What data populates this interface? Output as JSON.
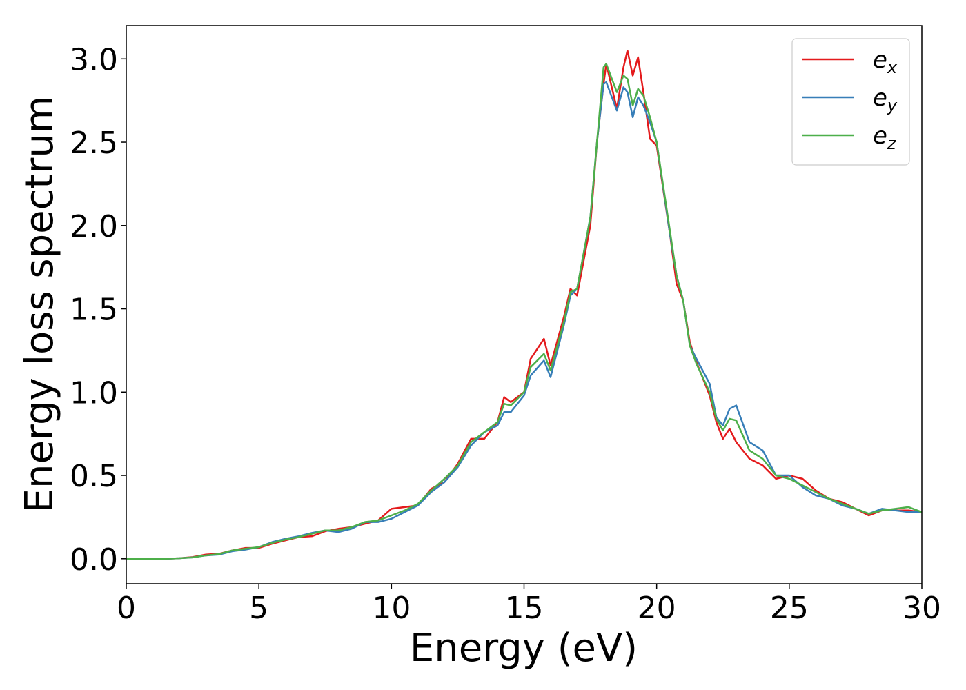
{
  "chart_data": {
    "type": "line",
    "xlabel": "Energy (eV)",
    "ylabel": "Energy loss spectrum",
    "x": [
      0,
      0.5,
      1,
      1.5,
      2,
      2.5,
      3,
      3.5,
      4,
      4.5,
      5,
      5.5,
      6,
      6.5,
      7,
      7.5,
      8,
      8.5,
      9,
      9.5,
      10,
      10.5,
      11,
      11.5,
      12,
      12.5,
      13,
      13.5,
      14,
      14.25,
      14.5,
      15,
      15.25,
      15.75,
      16,
      16.5,
      16.75,
      17,
      17.5,
      17.75,
      18,
      18.1,
      18.5,
      18.75,
      18.9,
      19.1,
      19.3,
      19.5,
      19.75,
      20,
      20.5,
      20.75,
      21,
      21.25,
      21.5,
      22,
      22.25,
      22.5,
      22.75,
      23,
      23.5,
      24,
      24.5,
      25,
      25.5,
      26,
      26.5,
      27,
      27.5,
      28,
      28.5,
      29,
      29.5,
      30
    ],
    "series": [
      {
        "name": "ex",
        "color": "#e41a1c",
        "values": [
          0,
          0,
          0,
          0,
          0.003,
          0.01,
          0.025,
          0.03,
          0.05,
          0.065,
          0.065,
          0.09,
          0.11,
          0.13,
          0.135,
          0.165,
          0.18,
          0.19,
          0.21,
          0.23,
          0.3,
          0.31,
          0.32,
          0.42,
          0.46,
          0.57,
          0.72,
          0.72,
          0.82,
          0.97,
          0.94,
          1.0,
          1.2,
          1.32,
          1.16,
          1.45,
          1.62,
          1.58,
          2.0,
          2.5,
          2.85,
          2.97,
          2.7,
          2.95,
          3.05,
          2.9,
          3.01,
          2.8,
          2.52,
          2.48,
          1.95,
          1.65,
          1.55,
          1.3,
          1.18,
          0.98,
          0.82,
          0.72,
          0.78,
          0.7,
          0.6,
          0.56,
          0.48,
          0.5,
          0.48,
          0.41,
          0.36,
          0.34,
          0.3,
          0.26,
          0.29,
          0.29,
          0.29,
          0.28
        ]
      },
      {
        "name": "ey",
        "color": "#377eb8",
        "values": [
          0,
          0,
          0,
          0,
          0.003,
          0.008,
          0.02,
          0.025,
          0.045,
          0.055,
          0.07,
          0.1,
          0.12,
          0.135,
          0.155,
          0.17,
          0.16,
          0.18,
          0.22,
          0.22,
          0.24,
          0.28,
          0.32,
          0.4,
          0.46,
          0.55,
          0.68,
          0.76,
          0.8,
          0.88,
          0.88,
          0.98,
          1.1,
          1.19,
          1.09,
          1.4,
          1.58,
          1.62,
          2.05,
          2.5,
          2.85,
          2.86,
          2.69,
          2.83,
          2.8,
          2.65,
          2.77,
          2.72,
          2.62,
          2.5,
          1.95,
          1.7,
          1.55,
          1.28,
          1.2,
          1.05,
          0.85,
          0.8,
          0.9,
          0.92,
          0.7,
          0.65,
          0.5,
          0.5,
          0.43,
          0.38,
          0.36,
          0.32,
          0.3,
          0.27,
          0.3,
          0.29,
          0.28,
          0.28
        ]
      },
      {
        "name": "ez",
        "color": "#4daf4a",
        "values": [
          0,
          0,
          0,
          0,
          0.003,
          0.008,
          0.02,
          0.028,
          0.05,
          0.06,
          0.07,
          0.095,
          0.115,
          0.13,
          0.15,
          0.17,
          0.17,
          0.19,
          0.22,
          0.23,
          0.26,
          0.29,
          0.33,
          0.41,
          0.48,
          0.56,
          0.7,
          0.76,
          0.82,
          0.93,
          0.92,
          1.0,
          1.15,
          1.23,
          1.13,
          1.42,
          1.6,
          1.62,
          2.05,
          2.5,
          2.95,
          2.97,
          2.8,
          2.9,
          2.88,
          2.72,
          2.82,
          2.78,
          2.65,
          2.5,
          1.97,
          1.7,
          1.55,
          1.28,
          1.17,
          1.0,
          0.84,
          0.77,
          0.84,
          0.83,
          0.65,
          0.6,
          0.5,
          0.48,
          0.44,
          0.4,
          0.36,
          0.33,
          0.3,
          0.27,
          0.29,
          0.3,
          0.31,
          0.28
        ]
      }
    ],
    "xlim": [
      0,
      30
    ],
    "xticks": [
      0,
      5,
      10,
      15,
      20,
      25,
      30
    ],
    "ylim": [
      -0.15,
      3.2
    ],
    "yticks": [
      {
        "value": 0,
        "label": "0.0"
      },
      0.5,
      {
        "value": 1,
        "label": "1.0"
      },
      1.5,
      {
        "value": 2,
        "label": "2.0"
      },
      2.5,
      {
        "value": 3,
        "label": "3.0"
      }
    ],
    "grid": false,
    "legend": "upper right"
  }
}
